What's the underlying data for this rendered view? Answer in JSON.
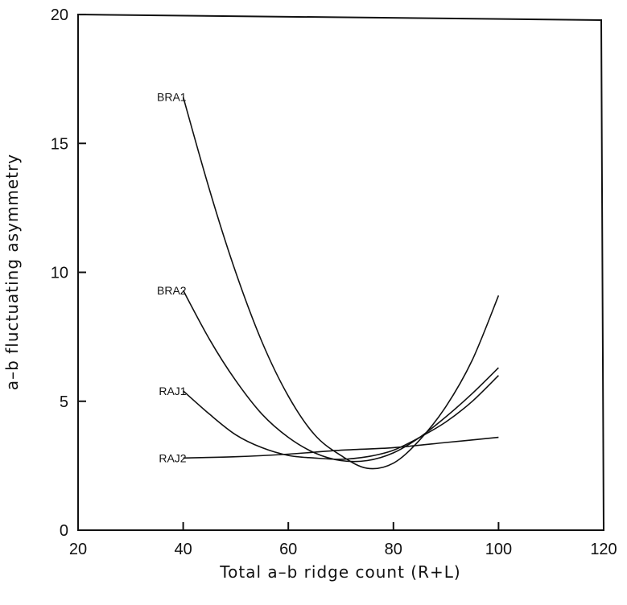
{
  "chart_data": {
    "type": "line",
    "title": "",
    "xlabel": "Total a–b ridge count (R+L)",
    "ylabel": "a–b fluctuating asymmetry",
    "xlim": [
      20,
      120
    ],
    "ylim": [
      0,
      20
    ],
    "xticks": [
      20,
      40,
      60,
      80,
      100,
      120
    ],
    "yticks": [
      0,
      5,
      10,
      15,
      20
    ],
    "grid": false,
    "legend": "none",
    "series": [
      {
        "name": "BRA1",
        "x": [
          40,
          45,
          50,
          55,
          60,
          65,
          70,
          75,
          80,
          85,
          90,
          95,
          100
        ],
        "y": [
          16.8,
          13.2,
          10.0,
          7.3,
          5.2,
          3.7,
          2.9,
          2.4,
          2.6,
          3.5,
          4.8,
          6.6,
          9.1
        ]
      },
      {
        "name": "BRA2",
        "x": [
          40,
          45,
          50,
          55,
          60,
          65,
          70,
          75,
          80,
          85,
          90,
          95,
          100
        ],
        "y": [
          9.3,
          7.4,
          5.8,
          4.5,
          3.6,
          3.0,
          2.7,
          2.7,
          3.0,
          3.6,
          4.4,
          5.3,
          6.3
        ]
      },
      {
        "name": "RAJ1",
        "x": [
          40,
          45,
          50,
          55,
          60,
          65,
          70,
          75,
          80,
          85,
          90,
          95,
          100
        ],
        "y": [
          5.4,
          4.5,
          3.7,
          3.2,
          2.9,
          2.8,
          2.75,
          2.85,
          3.1,
          3.6,
          4.2,
          5.0,
          6.0
        ]
      },
      {
        "name": "RAJ2",
        "x": [
          40,
          50,
          60,
          70,
          80,
          90,
          100
        ],
        "y": [
          2.8,
          2.85,
          2.95,
          3.1,
          3.2,
          3.4,
          3.6
        ]
      }
    ]
  }
}
